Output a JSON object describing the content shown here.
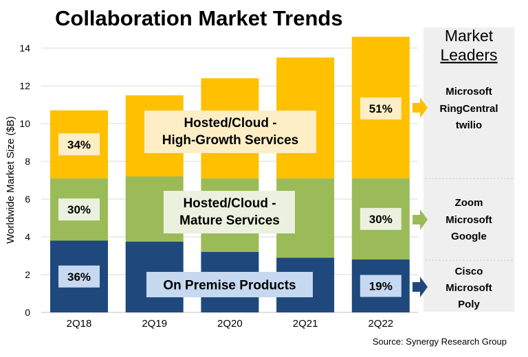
{
  "chart_data": {
    "type": "bar",
    "stacked": true,
    "title": "Collaboration Market Trends",
    "ylabel": "Worldwide Market Size ($B)",
    "xlabel": "",
    "ylim": [
      0,
      14
    ],
    "yticks": [
      0,
      2,
      4,
      6,
      8,
      10,
      12,
      14
    ],
    "grid": true,
    "categories": [
      "2Q18",
      "2Q19",
      "2Q20",
      "2Q21",
      "2Q22"
    ],
    "series": [
      {
        "name": "On Premise Products",
        "color": "#1f497d",
        "label_bg": "#c6d9f1",
        "values": [
          3.8,
          3.75,
          3.2,
          2.9,
          2.8
        ]
      },
      {
        "name": "Hosted/Cloud - Mature Services",
        "color": "#9bbb59",
        "label_bg": "#ebf1de",
        "values": [
          3.3,
          3.45,
          3.9,
          4.2,
          4.3
        ]
      },
      {
        "name": "Hosted/Cloud - High-Growth Services",
        "color": "#ffc000",
        "label_bg": "#fdeec6",
        "values": [
          3.6,
          4.3,
          5.3,
          6.4,
          7.5
        ]
      }
    ],
    "series_labels": [
      [
        "On Premise Products"
      ],
      [
        "Hosted/Cloud -",
        "Mature Services"
      ],
      [
        "Hosted/Cloud -",
        "High-Growth Services"
      ]
    ],
    "share_labels": {
      "2Q18": [
        "36%",
        "30%",
        "34%"
      ],
      "2Q22": [
        "19%",
        "30%",
        "51%"
      ]
    },
    "source": "Source: Synergy Research Group"
  },
  "leaders_panel": {
    "title_line1": "Market",
    "title_line2": "Leaders",
    "groups": [
      {
        "segment": "Hosted/Cloud - High-Growth Services",
        "names": [
          "Microsoft",
          "RingCentral",
          "twilio"
        ]
      },
      {
        "segment": "Hosted/Cloud - Mature Services",
        "names": [
          "Zoom",
          "Microsoft",
          "Google"
        ]
      },
      {
        "segment": "On Premise Products",
        "names": [
          "Cisco",
          "Microsoft",
          "Poly"
        ]
      }
    ]
  }
}
